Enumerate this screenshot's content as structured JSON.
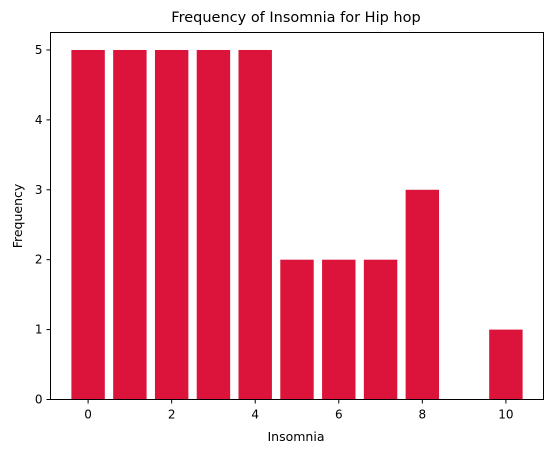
{
  "chart_data": {
    "type": "bar",
    "title": "Frequency of Insomnia for Hip hop",
    "xlabel": "Insomnia",
    "ylabel": "Frequency",
    "x": [
      0,
      1,
      2,
      3,
      4,
      5,
      6,
      7,
      8,
      10
    ],
    "values": [
      5,
      5,
      5,
      5,
      5,
      2,
      2,
      2,
      3,
      1
    ],
    "bar_color": "#dc143c",
    "xlim": [
      -0.9,
      10.9
    ],
    "ylim": [
      0,
      5.25
    ],
    "xticks": [
      0,
      2,
      4,
      6,
      8,
      10
    ],
    "yticks": [
      0,
      1,
      2,
      3,
      4,
      5
    ],
    "grid": false,
    "legend": false
  }
}
